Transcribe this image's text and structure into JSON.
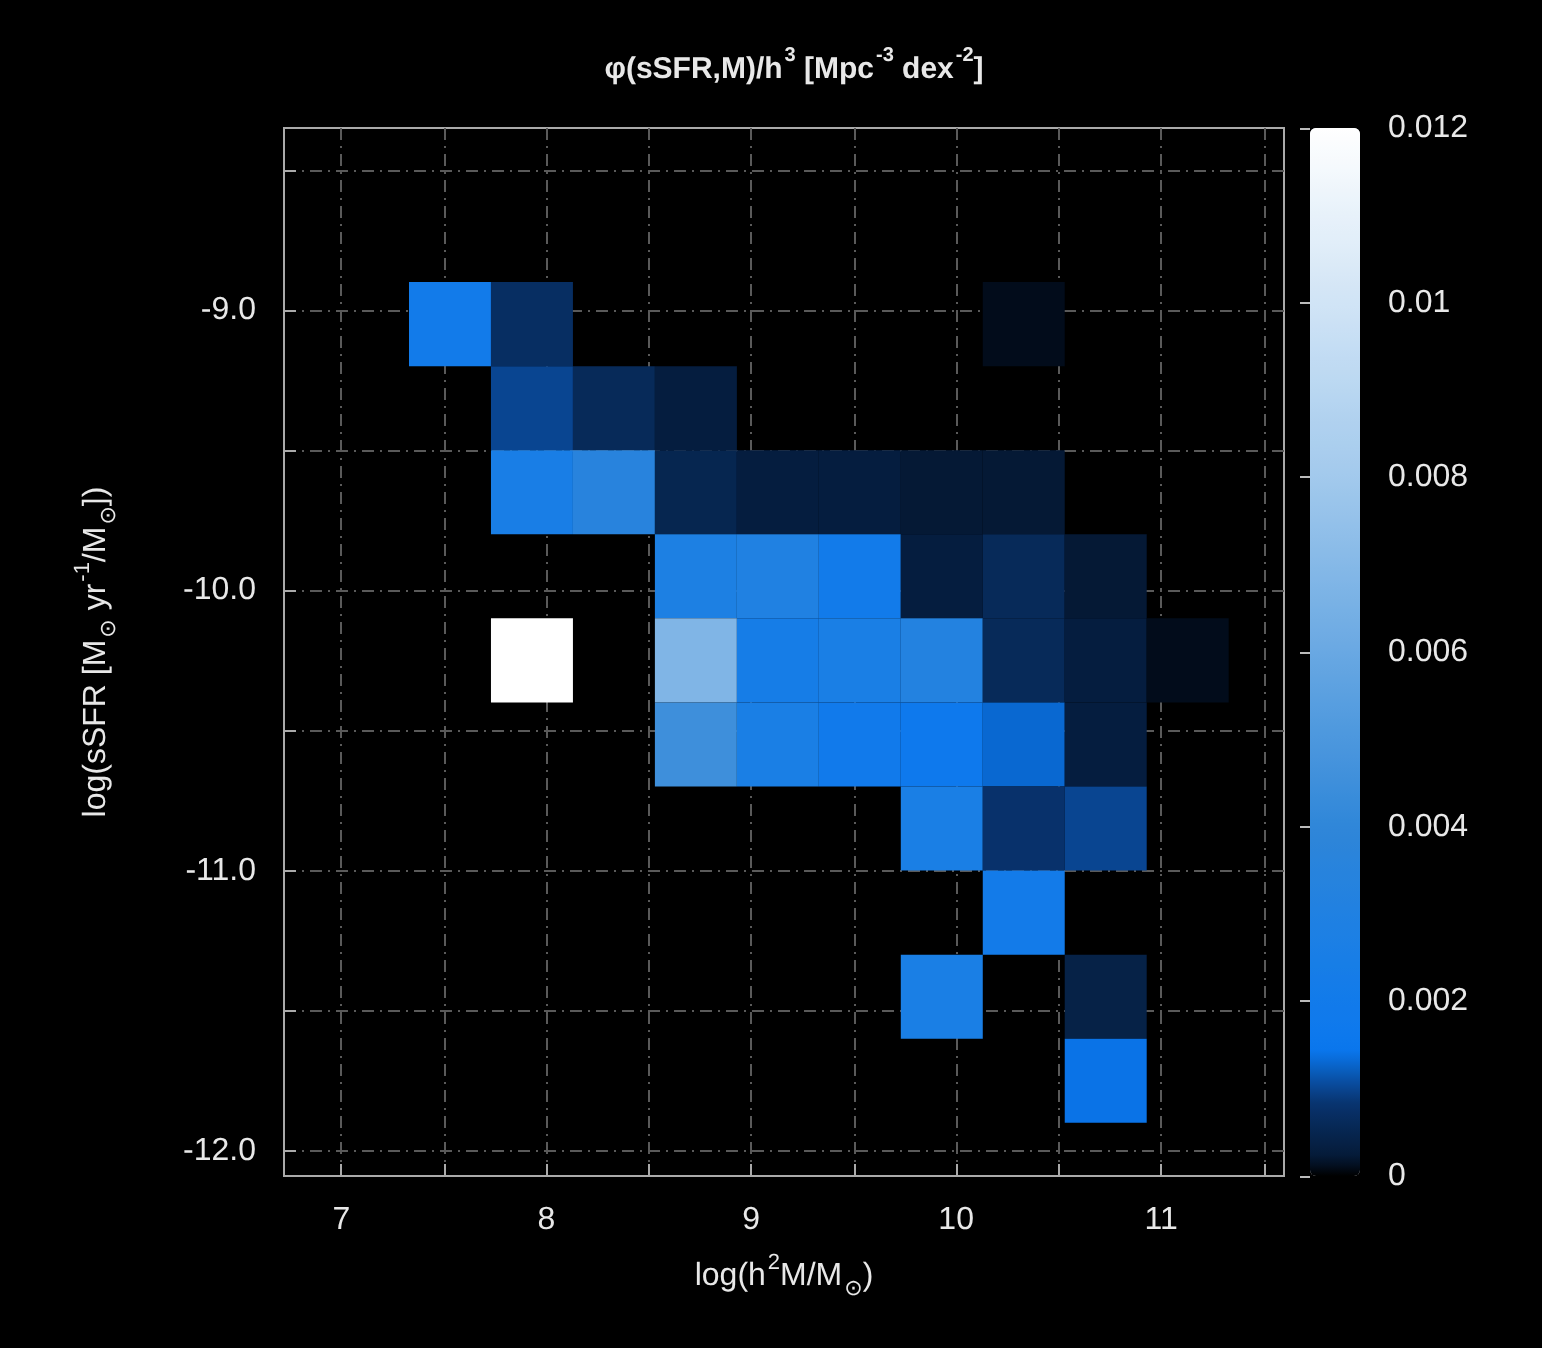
{
  "chart_data": {
    "type": "scatter",
    "title": "φ(sSFR,M)/h$^{3}$ [Mpc$^{-3}$ dex$^{-2}$]",
    "xlabel": "log(h$^{2}$M/M$_{⊙}$)",
    "ylabel": "log(sSFR [M$_{⊙}$ yr$^{-1}$/M$_{⊙}$])",
    "marker": "square",
    "grid": true,
    "x": [
      7.53,
      7.93,
      10.33,
      7.93,
      8.33,
      8.73,
      7.93,
      8.33,
      8.73,
      9.13,
      9.53,
      9.93,
      10.33,
      8.73,
      9.13,
      9.53,
      9.93,
      10.33,
      10.73,
      7.93,
      8.73,
      9.13,
      9.53,
      9.93,
      10.33,
      10.73,
      11.13,
      8.73,
      9.13,
      9.53,
      9.93,
      10.33,
      10.73,
      9.93,
      10.33,
      10.73,
      10.33,
      9.93,
      10.73,
      10.73
    ],
    "values": [
      -9.05,
      -9.05,
      -9.05,
      -9.35,
      -9.35,
      -9.35,
      -9.65,
      -9.65,
      -9.65,
      -9.65,
      -9.65,
      -9.65,
      -9.65,
      -9.95,
      -9.95,
      -9.95,
      -9.95,
      -9.95,
      -9.95,
      -10.25,
      -10.25,
      -10.25,
      -10.25,
      -10.25,
      -10.25,
      -10.25,
      -10.25,
      -10.55,
      -10.55,
      -10.55,
      -10.55,
      -10.55,
      -10.55,
      -10.85,
      -10.85,
      -10.85,
      -11.15,
      -11.45,
      -11.45,
      -11.75
    ],
    "cvalues": [
      0.002,
      0.0007,
      0.0001,
      0.001,
      0.0006,
      0.0003,
      0.0025,
      0.0035,
      0.0005,
      0.0003,
      0.0003,
      0.0002,
      0.0002,
      0.0028,
      0.003,
      0.002,
      0.0003,
      0.0006,
      0.0002,
      0.012,
      0.0068,
      0.0023,
      0.0026,
      0.0032,
      0.0006,
      0.0003,
      0.0001,
      0.0045,
      0.0026,
      0.0019,
      0.0017,
      0.0013,
      0.0003,
      0.0026,
      0.0008,
      0.001,
      0.0021,
      0.0026,
      0.0004,
      0.0014
    ],
    "xlim": [
      6.72,
      11.6
    ],
    "xticks": [
      7,
      {
        "value": 7.5,
        "label": null
      },
      8,
      {
        "value": 8.5,
        "label": null
      },
      9,
      {
        "value": 9.5,
        "label": null
      },
      10,
      {
        "value": 10.5,
        "label": null
      },
      11,
      {
        "value": 11.5,
        "label": null
      }
    ],
    "ylim": [
      -12.09,
      -8.35
    ],
    "yticks": [
      {
        "value": -8.5,
        "label": null
      },
      {
        "value": -9,
        "label": "-9.0"
      },
      {
        "value": -9.5,
        "label": null
      },
      {
        "value": -10,
        "label": "-10.0"
      },
      {
        "value": -10.5,
        "label": null
      },
      {
        "value": -11,
        "label": "-11.0"
      },
      {
        "value": -11.5,
        "label": null
      },
      {
        "value": -12,
        "label": "-12.0"
      }
    ],
    "clim": [
      0,
      0.012
    ],
    "cticks": [
      0,
      0.002,
      0.004,
      0.006,
      0.008,
      0.01,
      0.012
    ]
  }
}
